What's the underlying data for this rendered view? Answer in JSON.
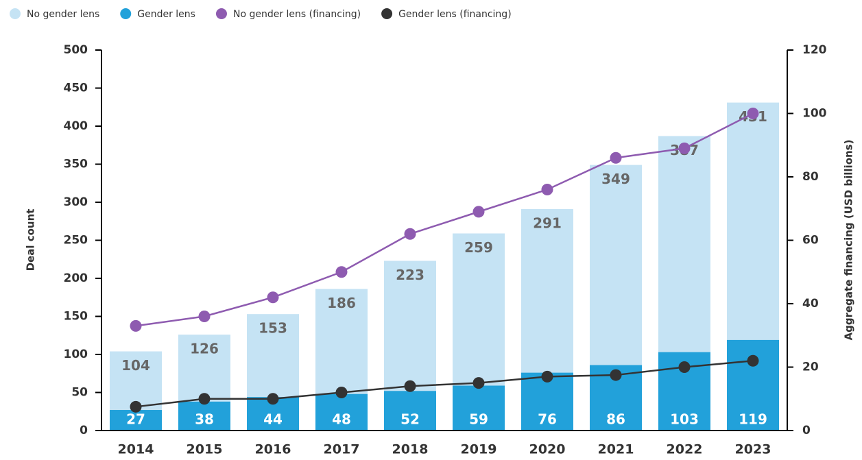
{
  "chart_data": {
    "type": "bar",
    "categories": [
      "2014",
      "2015",
      "2016",
      "2017",
      "2018",
      "2019",
      "2020",
      "2021",
      "2022",
      "2023"
    ],
    "series": [
      {
        "name": "No gender lens",
        "color": "#c5e3f4",
        "values": [
          104,
          126,
          153,
          186,
          223,
          259,
          291,
          349,
          387,
          431
        ]
      },
      {
        "name": "Gender lens",
        "color": "#22a1da",
        "values": [
          27,
          38,
          44,
          48,
          52,
          59,
          76,
          86,
          103,
          119
        ]
      },
      {
        "name": "No gender lens (financing)",
        "color": "#8e5bb0",
        "type": "line",
        "axis": "y2",
        "values": [
          33,
          36,
          42,
          50,
          62,
          69,
          76,
          86,
          89,
          100
        ]
      },
      {
        "name": "Gender lens (financing)",
        "color": "#333333",
        "type": "line",
        "axis": "y2",
        "values": [
          7.5,
          10,
          10,
          12,
          14,
          15,
          17,
          17.5,
          20,
          22
        ]
      }
    ],
    "ylabel": "Deal count",
    "y2label": "Aggregate financing (USD billions)",
    "ylim": [
      0,
      500
    ],
    "yticks": [
      0,
      50,
      100,
      150,
      200,
      250,
      300,
      350,
      400,
      450,
      500
    ],
    "y2lim": [
      0,
      120
    ],
    "y2ticks": [
      0,
      20,
      40,
      60,
      80,
      100,
      120
    ],
    "legend": "top-left"
  }
}
